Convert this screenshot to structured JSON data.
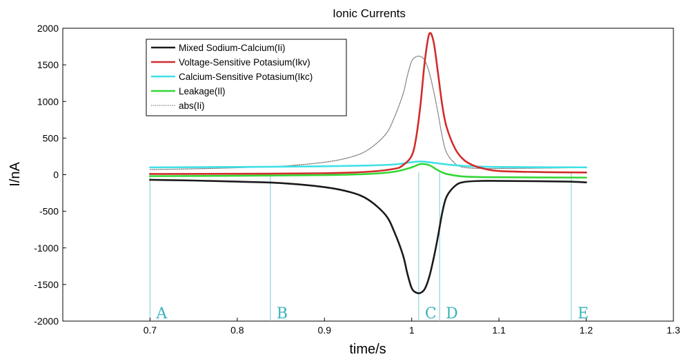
{
  "chart_data": {
    "type": "line",
    "title": "Ionic Currents",
    "xlabel": "time/s",
    "ylabel": "I/nA",
    "xlim": [
      0.6,
      1.3
    ],
    "ylim": [
      -2000,
      2000
    ],
    "xticks": [
      "0.7",
      "0.8",
      "0.9",
      "1",
      "1.1",
      "1.2",
      "1.3"
    ],
    "yticks": [
      "2000",
      "1500",
      "1000",
      "500",
      "0",
      "-500",
      "-1000",
      "-1500",
      "-2000"
    ],
    "grid": false,
    "legend_position": "top-left",
    "markers": [
      {
        "label": "A",
        "x": 0.7
      },
      {
        "label": "B",
        "x": 0.838
      },
      {
        "label": "C",
        "x": 1.008
      },
      {
        "label": "D",
        "x": 1.032
      },
      {
        "label": "E",
        "x": 1.183
      }
    ],
    "marker_color": "#8fd3d6",
    "marker_label_color": "#37b3bd",
    "series": [
      {
        "name": "Mixed Sodium-Calcium(Ii)",
        "color": "#1a1a1a",
        "style": "solid",
        "x": [
          0.7,
          0.75,
          0.8,
          0.85,
          0.9,
          0.93,
          0.95,
          0.97,
          0.98,
          0.99,
          0.995,
          1.0,
          1.005,
          1.01,
          1.015,
          1.02,
          1.025,
          1.03,
          1.035,
          1.04,
          1.05,
          1.06,
          1.08,
          1.1,
          1.15,
          1.18,
          1.2
        ],
        "y": [
          -70,
          -80,
          -95,
          -115,
          -170,
          -240,
          -340,
          -550,
          -780,
          -1100,
          -1350,
          -1550,
          -1610,
          -1615,
          -1560,
          -1400,
          -1150,
          -850,
          -520,
          -300,
          -150,
          -100,
          -85,
          -85,
          -90,
          -95,
          -105
        ]
      },
      {
        "name": "Voltage-Sensitive Potasium(Ikv)",
        "color": "#d12b2b",
        "style": "solid",
        "x": [
          0.7,
          0.8,
          0.9,
          0.95,
          0.98,
          0.99,
          1.0,
          1.005,
          1.01,
          1.015,
          1.02,
          1.025,
          1.03,
          1.035,
          1.04,
          1.05,
          1.06,
          1.07,
          1.08,
          1.1,
          1.15,
          1.2
        ],
        "y": [
          10,
          12,
          20,
          40,
          80,
          130,
          260,
          500,
          950,
          1550,
          1920,
          1820,
          1400,
          950,
          650,
          350,
          200,
          130,
          90,
          50,
          35,
          30
        ]
      },
      {
        "name": "Calcium-Sensitive Potasium(Ikc)",
        "color": "#3fe0e8",
        "style": "solid",
        "x": [
          0.7,
          0.8,
          0.9,
          0.95,
          0.98,
          1.0,
          1.01,
          1.02,
          1.04,
          1.06,
          1.1,
          1.2
        ],
        "y": [
          100,
          105,
          115,
          125,
          140,
          170,
          180,
          170,
          140,
          120,
          105,
          100
        ]
      },
      {
        "name": "Leakage(Il)",
        "color": "#33d633",
        "style": "solid",
        "x": [
          0.7,
          0.8,
          0.9,
          0.95,
          0.98,
          1.0,
          1.01,
          1.02,
          1.03,
          1.04,
          1.06,
          1.1,
          1.2
        ],
        "y": [
          -20,
          -15,
          -5,
          10,
          40,
          100,
          145,
          130,
          60,
          10,
          -25,
          -35,
          -40
        ]
      },
      {
        "name": "abs(Ii)",
        "color": "#7a7a7a",
        "style": "dotted",
        "x": [
          0.7,
          0.75,
          0.8,
          0.85,
          0.9,
          0.93,
          0.95,
          0.97,
          0.98,
          0.99,
          0.995,
          1.0,
          1.005,
          1.01,
          1.015,
          1.02,
          1.025,
          1.03,
          1.035,
          1.04,
          1.05,
          1.06,
          1.08,
          1.1,
          1.15,
          1.18,
          1.2
        ],
        "y": [
          70,
          80,
          95,
          115,
          170,
          240,
          340,
          550,
          780,
          1100,
          1350,
          1550,
          1610,
          1615,
          1560,
          1400,
          1150,
          850,
          520,
          300,
          150,
          100,
          85,
          85,
          90,
          95,
          105
        ]
      }
    ]
  }
}
